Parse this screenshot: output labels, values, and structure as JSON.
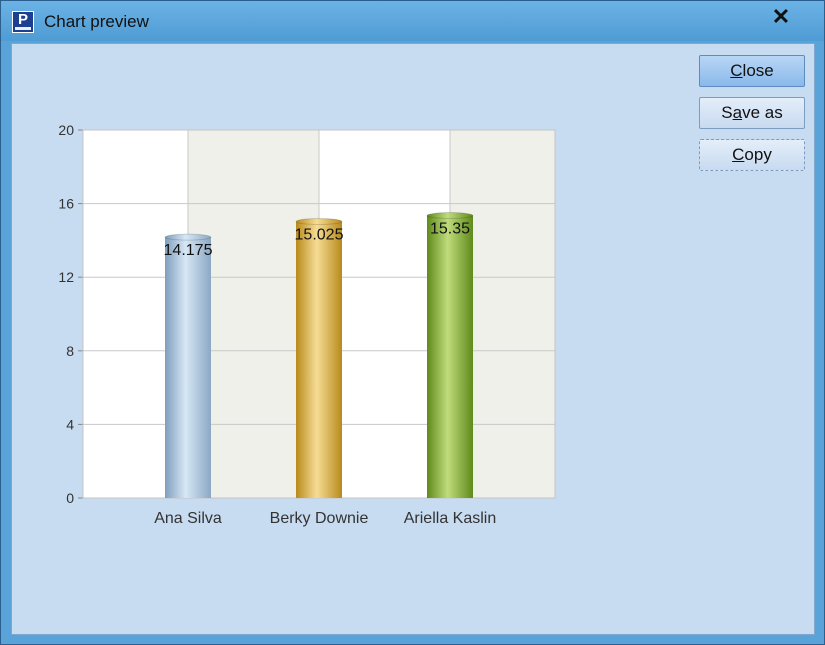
{
  "window": {
    "title": "Chart preview",
    "icon": "app-logo-icon",
    "close_icon": "close-icon"
  },
  "buttons": {
    "close": {
      "pre": "",
      "ul": "C",
      "post": "lose"
    },
    "save_as": {
      "pre": "S",
      "ul": "a",
      "post": "ve as"
    },
    "copy": {
      "pre": "",
      "ul": "C",
      "post": "opy"
    }
  },
  "chart_data": {
    "type": "bar",
    "categories": [
      "Ana Silva",
      "Berky Downie",
      "Ariella Kaslin"
    ],
    "values": [
      14.175,
      15.025,
      15.35
    ],
    "value_labels": [
      "14.175",
      "15.025",
      "15.35"
    ],
    "ylim": [
      0,
      20
    ],
    "yticks": [
      "0",
      "4",
      "8",
      "12",
      "16",
      "20"
    ],
    "grid": true,
    "colors": [
      "#a9c6e0",
      "#e2b948",
      "#8db43a"
    ]
  }
}
